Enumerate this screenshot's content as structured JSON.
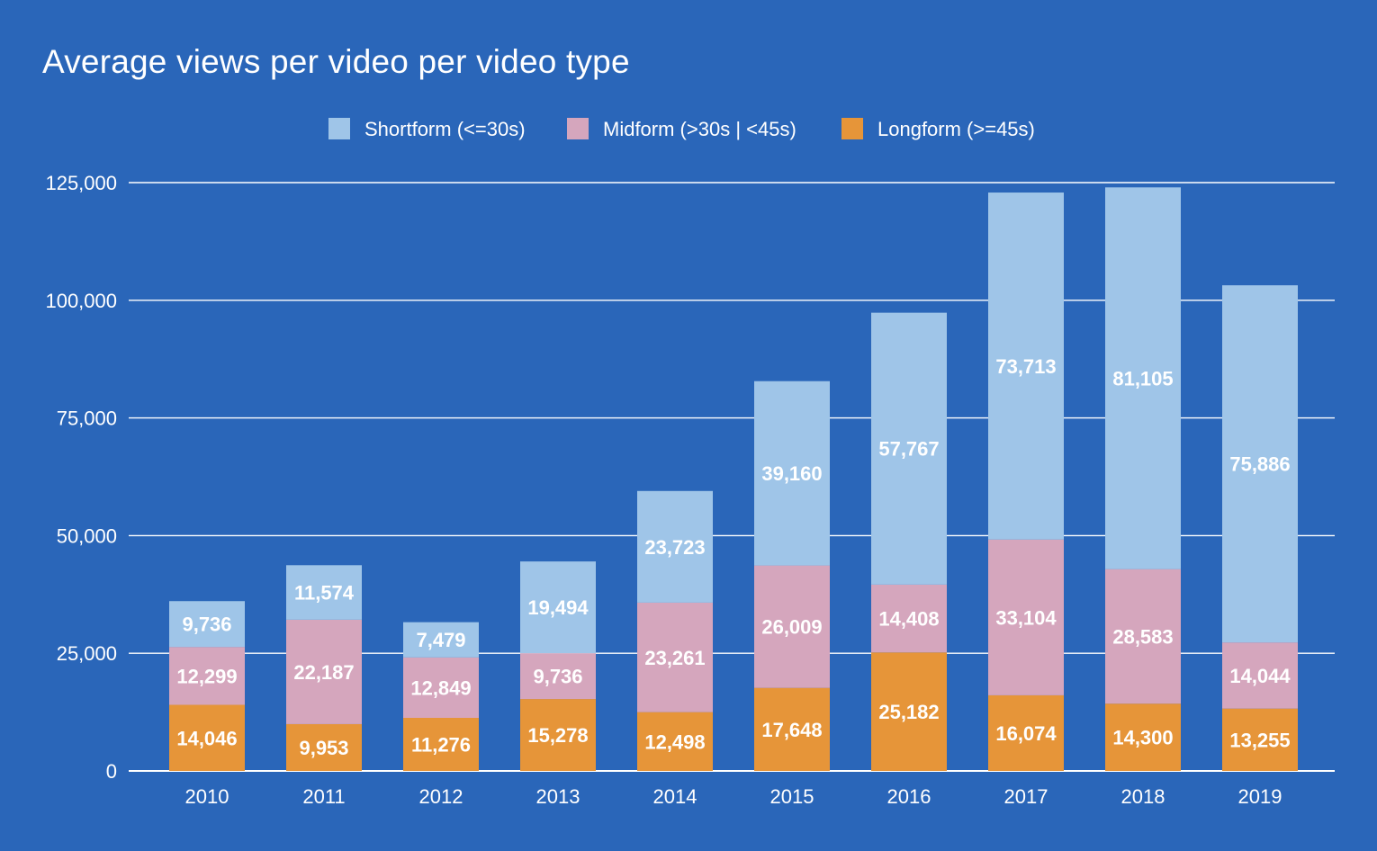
{
  "chart_data": {
    "type": "bar",
    "stacked": true,
    "title": "Average views per video per video type",
    "xlabel": "",
    "ylabel": "",
    "categories": [
      "2010",
      "2011",
      "2012",
      "2013",
      "2014",
      "2015",
      "2016",
      "2017",
      "2018",
      "2019"
    ],
    "series": [
      {
        "name": "Longform (>=45s)",
        "color": "#e69539",
        "values": [
          14046,
          9953,
          11276,
          15278,
          12498,
          17648,
          25182,
          16074,
          14300,
          13255
        ],
        "labels": [
          "14,046",
          "9,953",
          "11,276",
          "15,278",
          "12,498",
          "17,648",
          "25,182",
          "16,074",
          "14,300",
          "13,255"
        ]
      },
      {
        "name": "Midform (>30s | <45s)",
        "color": "#d5a6bd",
        "values": [
          12299,
          22187,
          12849,
          9736,
          23261,
          26009,
          14408,
          33104,
          28583,
          14044
        ],
        "labels": [
          "12,299",
          "22,187",
          "12,849",
          "9,736",
          "23,261",
          "26,009",
          "14,408",
          "33,104",
          "28,583",
          "14,044"
        ]
      },
      {
        "name": "Shortform (<=30s)",
        "color": "#9fc5e8",
        "values": [
          9736,
          11574,
          7479,
          19494,
          23723,
          39160,
          57767,
          73713,
          81105,
          75886
        ],
        "labels": [
          "9,736",
          "11,574",
          "7,479",
          "19,494",
          "23,723",
          "39,160",
          "57,767",
          "73,713",
          "81,105",
          "75,886"
        ]
      }
    ],
    "legend_order": [
      "Shortform (<=30s)",
      "Midform (>30s | <45s)",
      "Longform (>=45s)"
    ],
    "legend_position": "top",
    "ylim": [
      0,
      125000
    ],
    "yticks": [
      0,
      25000,
      50000,
      75000,
      100000,
      125000
    ],
    "ytick_labels": [
      "0",
      "25,000",
      "50,000",
      "75,000",
      "100,000",
      "125,000"
    ],
    "grid": true,
    "background": "#2a66b9",
    "text_color": "#ffffff"
  }
}
